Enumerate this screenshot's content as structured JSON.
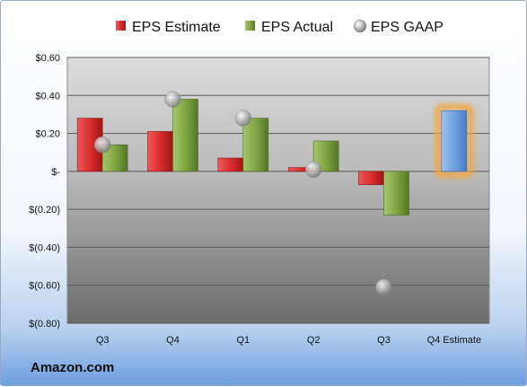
{
  "brand": "Amazon.com",
  "colors": {
    "estimate": "#d42a2a",
    "actual": "#7ba23f",
    "gaap": "#a9a9a9",
    "highlight_bar": "#6f9fdc",
    "highlight_glow": "#f4a640"
  },
  "chart_data": {
    "type": "bar",
    "categories": [
      "Q3",
      "Q4",
      "Q1",
      "Q2",
      "Q3",
      "Q4 Estimate"
    ],
    "series": [
      {
        "name": "EPS Estimate",
        "kind": "bar",
        "values": [
          0.28,
          0.21,
          0.07,
          0.02,
          -0.07,
          null
        ]
      },
      {
        "name": "EPS Actual",
        "kind": "bar",
        "values": [
          0.14,
          0.38,
          0.28,
          0.16,
          -0.23,
          null
        ]
      },
      {
        "name": "EPS GAAP",
        "kind": "marker",
        "values": [
          0.14,
          0.38,
          0.28,
          0.01,
          -0.61,
          null
        ]
      }
    ],
    "estimate_next": {
      "category": "Q4 Estimate",
      "value": 0.32
    },
    "yticks": [
      0.6,
      0.4,
      0.2,
      0,
      -0.2,
      -0.4,
      -0.6,
      -0.8
    ],
    "ytick_labels": [
      "$0.60",
      "$0.40",
      "$0.20",
      "$-",
      "$(0.20)",
      "$(0.40)",
      "$(0.60)",
      "$(0.80)"
    ],
    "ylim": [
      -0.8,
      0.6
    ],
    "grid": true,
    "legend_position": "top"
  }
}
